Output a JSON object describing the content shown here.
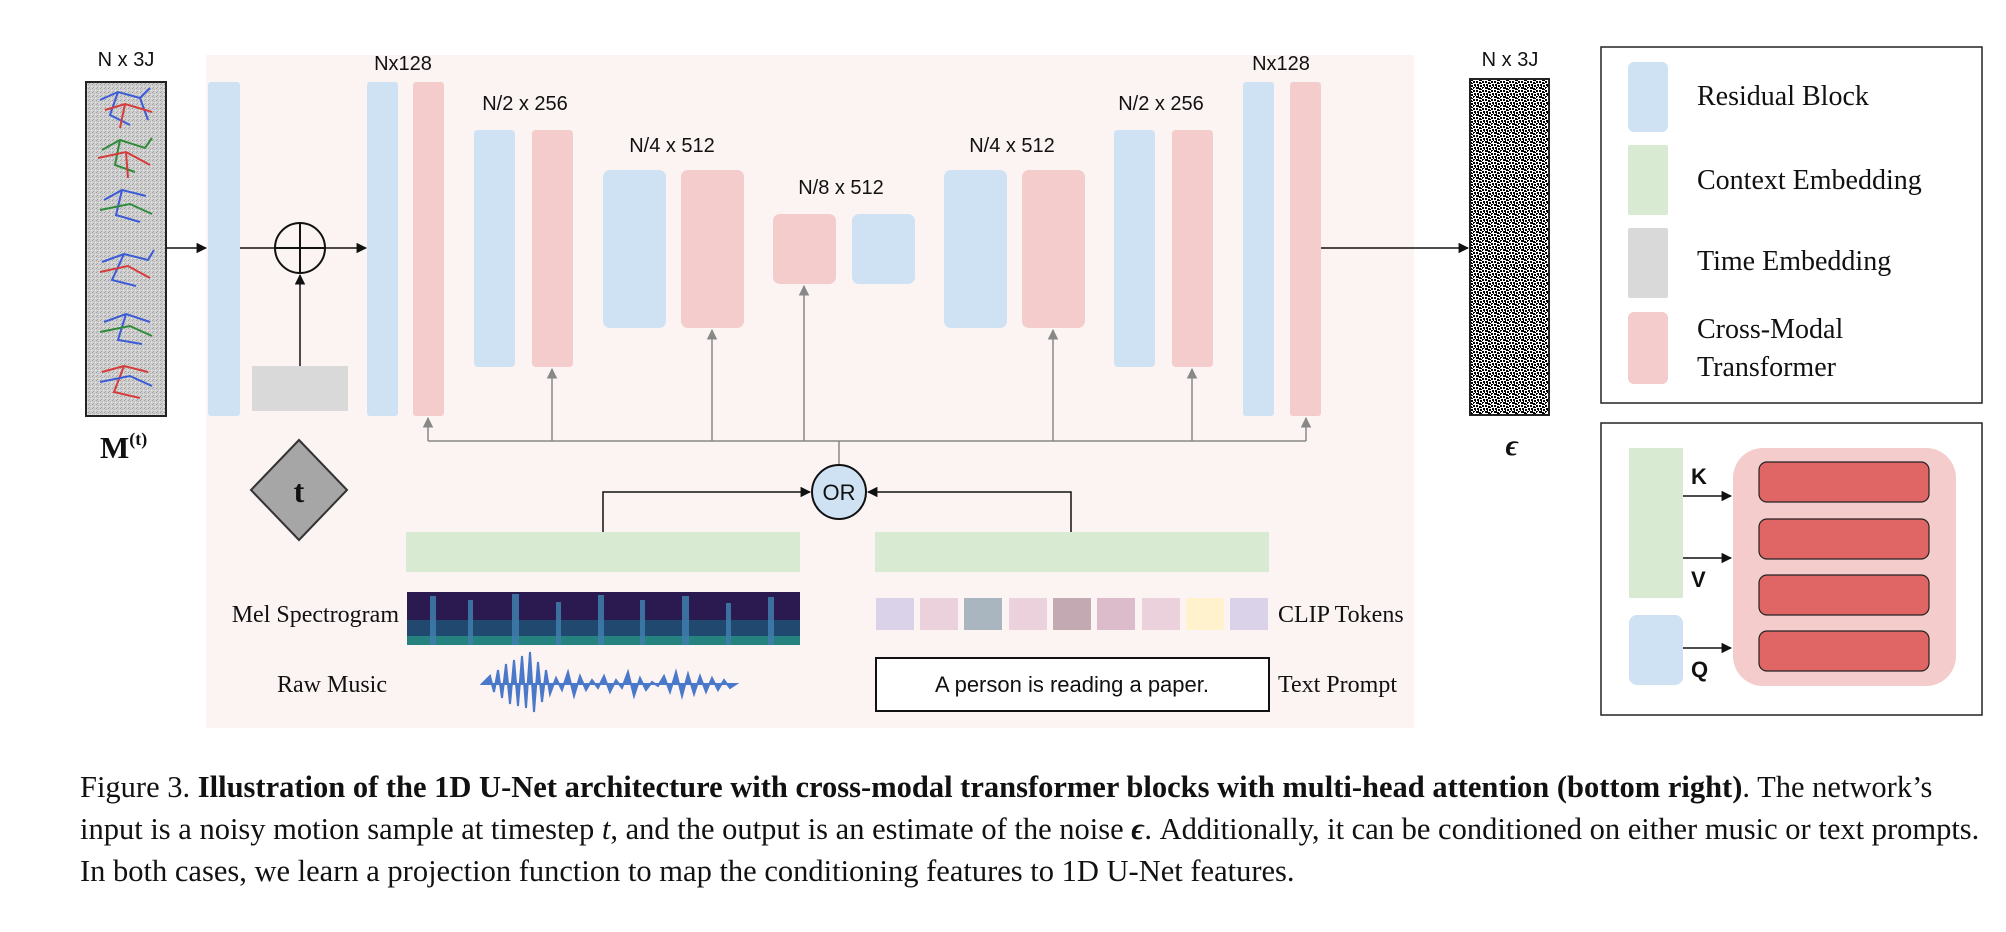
{
  "diagram": {
    "input_label": "N x 3J",
    "input_symbol": "M",
    "input_superscript": "(t)",
    "output_label": "N x 3J",
    "output_symbol": "ϵ",
    "stage_labels": {
      "enc1": "Nx128",
      "enc2": "N/2 x 256",
      "enc3": "N/4 x 512",
      "bottleneck": "N/8 x 512",
      "dec3": "N/4 x 512",
      "dec2": "N/2 x 256",
      "dec1": "Nx128"
    },
    "time_symbol": "t",
    "or_label": "OR",
    "mel_label": "Mel Spectrogram",
    "raw_music_label": "Raw Music",
    "clip_label": "CLIP Tokens",
    "text_prompt_label": "Text Prompt",
    "text_prompt_value": "A person is reading a paper.",
    "colors": {
      "residual": "#cfe2f3",
      "context": "#d9ead3",
      "time": "#d9d9d9",
      "transformer": "#f4cccc",
      "panel_bg": "#fcf3f3",
      "attention_head": "#e06666"
    }
  },
  "legend": {
    "items": [
      {
        "label": "Residual Block",
        "color": "#cfe2f3"
      },
      {
        "label": "Context Embedding",
        "color": "#d9ead3"
      },
      {
        "label": "Time Embedding",
        "color": "#d9d9d9"
      },
      {
        "label": "Cross-Modal",
        "label2": "Transformer",
        "color": "#f4cccc"
      }
    ]
  },
  "attention": {
    "k_label": "K",
    "v_label": "V",
    "q_label": "Q"
  },
  "caption": {
    "prefix": "Figure 3. ",
    "bold": "Illustration of the 1D U-Net architecture with cross-modal transformer blocks with multi-head attention (bottom right)",
    "line1_end": ".",
    "text1": "The network’s input is a noisy motion sample at timestep ",
    "t": "t",
    "text2": ", and the output is an estimate of the noise ",
    "eps": "ϵ",
    "text3": ". Additionally, it can be conditioned on either music or text prompts. In both cases, we learn a projection function to map the conditioning features to 1D U-Net features."
  }
}
